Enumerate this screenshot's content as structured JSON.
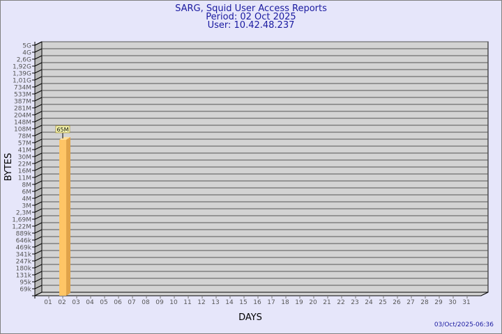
{
  "chart_data": {
    "type": "bar",
    "title": [
      "SARG, Squid User Access Reports",
      "Period: 02 Oct 2025",
      "User: 10.42.48.237"
    ],
    "xlabel": "DAYS",
    "ylabel": "BYTES",
    "y_scale": "log",
    "grid": true,
    "y_tick_labels": [
      "5G",
      "4G",
      "2,6G",
      "1,92G",
      "1,39G",
      "1,01G",
      "734M",
      "533M",
      "387M",
      "281M",
      "204M",
      "148M",
      "108M",
      "78M",
      "57M",
      "41M",
      "30M",
      "22M",
      "16M",
      "11M",
      "8M",
      "6M",
      "4M",
      "3M",
      "2,3M",
      "1,69M",
      "1,22M",
      "889k",
      "646k",
      "469k",
      "341k",
      "247k",
      "180k",
      "131k",
      "95k",
      "69k"
    ],
    "categories": [
      "01",
      "02",
      "03",
      "04",
      "05",
      "06",
      "07",
      "08",
      "09",
      "10",
      "11",
      "12",
      "13",
      "14",
      "15",
      "16",
      "17",
      "18",
      "19",
      "20",
      "21",
      "22",
      "23",
      "24",
      "25",
      "26",
      "27",
      "28",
      "29",
      "30",
      "31"
    ],
    "series": [
      {
        "values": [
          {
            "day": "02",
            "value": "65M",
            "label": "65M"
          }
        ]
      }
    ],
    "colors": {
      "bar_front": "#ffc566",
      "bar_side": "#e0a34a",
      "plot_bg": "#d3d3d3",
      "title": "#1a1aa0",
      "background": "#e6e6fa"
    }
  },
  "footer": {
    "timestamp": "03/Oct/2025-06:36"
  }
}
